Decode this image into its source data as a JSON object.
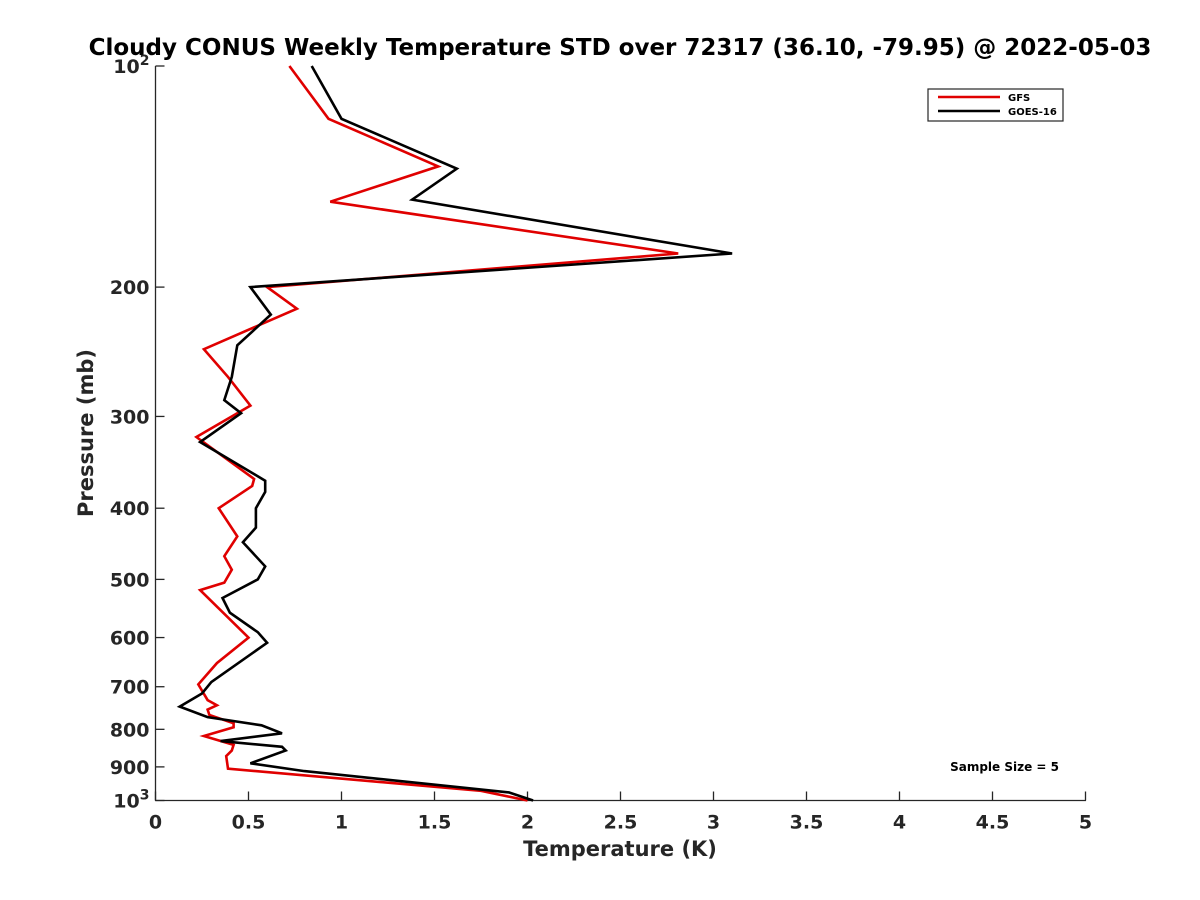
{
  "chart_data": {
    "type": "line",
    "title": "Cloudy CONUS Weekly Temperature STD over 72317 (36.10, -79.95) @ 2022-05-03",
    "xlabel": "Temperature (K)",
    "ylabel": "Pressure (mb)",
    "xlim": [
      0,
      5
    ],
    "ylim": [
      100,
      1000
    ],
    "y_scale": "log",
    "y_reversed": true,
    "x_ticks": [
      "0",
      "0.5",
      "1",
      "1.5",
      "2",
      "2.5",
      "3",
      "3.5",
      "4",
      "4.5",
      "5"
    ],
    "y_ticks": [
      {
        "value": 100,
        "base": "10",
        "exp": "2"
      },
      {
        "value": 200,
        "label": "200"
      },
      {
        "value": 300,
        "label": "300"
      },
      {
        "value": 400,
        "label": "400"
      },
      {
        "value": 500,
        "label": "500"
      },
      {
        "value": 600,
        "label": "600"
      },
      {
        "value": 700,
        "label": "700"
      },
      {
        "value": 800,
        "label": "800"
      },
      {
        "value": 900,
        "label": "900"
      },
      {
        "value": 1000,
        "base": "10",
        "exp": "3"
      }
    ],
    "grid": false,
    "legend_position": "top-right",
    "annotation": "Sample Size = 5",
    "series": [
      {
        "name": "GFS",
        "color": "#e00000",
        "points": [
          [
            0.72,
            100
          ],
          [
            0.93,
            118
          ],
          [
            1.52,
            137
          ],
          [
            0.94,
            153
          ],
          [
            2.81,
            180
          ],
          [
            0.6,
            200
          ],
          [
            0.76,
            214
          ],
          [
            0.26,
            243
          ],
          [
            0.39,
            265
          ],
          [
            0.51,
            290
          ],
          [
            0.22,
            320
          ],
          [
            0.53,
            365
          ],
          [
            0.52,
            373
          ],
          [
            0.34,
            400
          ],
          [
            0.44,
            437
          ],
          [
            0.37,
            465
          ],
          [
            0.41,
            485
          ],
          [
            0.37,
            505
          ],
          [
            0.24,
            517
          ],
          [
            0.5,
            600
          ],
          [
            0.33,
            650
          ],
          [
            0.23,
            695
          ],
          [
            0.28,
            730
          ],
          [
            0.33,
            742
          ],
          [
            0.28,
            752
          ],
          [
            0.29,
            765
          ],
          [
            0.42,
            785
          ],
          [
            0.42,
            795
          ],
          [
            0.26,
            817
          ],
          [
            0.42,
            840
          ],
          [
            0.41,
            855
          ],
          [
            0.38,
            870
          ],
          [
            0.39,
            905
          ],
          [
            1.75,
            970
          ],
          [
            2.0,
            1000
          ]
        ]
      },
      {
        "name": "GOES-16",
        "color": "#000000",
        "points": [
          [
            0.84,
            100
          ],
          [
            1.0,
            118
          ],
          [
            1.62,
            138
          ],
          [
            1.38,
            152
          ],
          [
            3.1,
            180
          ],
          [
            0.51,
            200
          ],
          [
            0.62,
            218
          ],
          [
            0.44,
            240
          ],
          [
            0.41,
            265
          ],
          [
            0.37,
            285
          ],
          [
            0.46,
            297
          ],
          [
            0.24,
            325
          ],
          [
            0.59,
            367
          ],
          [
            0.59,
            380
          ],
          [
            0.54,
            400
          ],
          [
            0.54,
            425
          ],
          [
            0.47,
            445
          ],
          [
            0.59,
            480
          ],
          [
            0.55,
            500
          ],
          [
            0.36,
            530
          ],
          [
            0.4,
            555
          ],
          [
            0.55,
            590
          ],
          [
            0.6,
            610
          ],
          [
            0.3,
            690
          ],
          [
            0.25,
            715
          ],
          [
            0.13,
            745
          ],
          [
            0.28,
            770
          ],
          [
            0.57,
            790
          ],
          [
            0.68,
            810
          ],
          [
            0.35,
            830
          ],
          [
            0.68,
            845
          ],
          [
            0.7,
            855
          ],
          [
            0.51,
            890
          ],
          [
            0.8,
            912
          ],
          [
            1.9,
            975
          ],
          [
            2.03,
            1000
          ]
        ]
      }
    ]
  }
}
